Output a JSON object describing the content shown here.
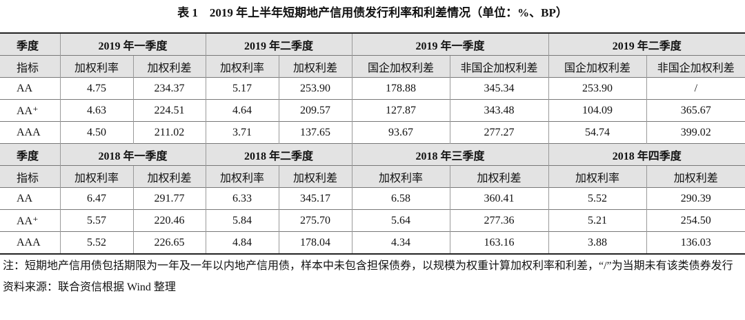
{
  "title": "表 1　2019 年上半年短期地产信用债发行利率和利差情况（单位：%、BP）",
  "table": {
    "sections": [
      {
        "season_label": "季度",
        "periods": [
          "2019 年一季度",
          "2019 年二季度",
          "2019 年一季度",
          "2019 年二季度"
        ],
        "index_label": "指标",
        "metrics": [
          "加权利率",
          "加权利差",
          "加权利率",
          "加权利差",
          "国企加权利差",
          "非国企加权利差",
          "国企加权利差",
          "非国企加权利差"
        ],
        "rows": [
          [
            "AA",
            "4.75",
            "234.37",
            "5.17",
            "253.90",
            "178.88",
            "345.34",
            "253.90",
            "/"
          ],
          [
            "AA⁺",
            "4.63",
            "224.51",
            "4.64",
            "209.57",
            "127.87",
            "343.48",
            "104.09",
            "365.67"
          ],
          [
            "AAA",
            "4.50",
            "211.02",
            "3.71",
            "137.65",
            "93.67",
            "277.27",
            "54.74",
            "399.02"
          ]
        ]
      },
      {
        "season_label": "季度",
        "periods": [
          "2018 年一季度",
          "2018 年二季度",
          "2018 年三季度",
          "2018 年四季度"
        ],
        "index_label": "指标",
        "metrics": [
          "加权利率",
          "加权利差",
          "加权利率",
          "加权利差",
          "加权利率",
          "加权利差",
          "加权利率",
          "加权利差"
        ],
        "rows": [
          [
            "AA",
            "6.47",
            "291.77",
            "6.33",
            "345.17",
            "6.58",
            "360.41",
            "5.52",
            "290.39"
          ],
          [
            "AA⁺",
            "5.57",
            "220.46",
            "5.84",
            "275.70",
            "5.64",
            "277.36",
            "5.21",
            "254.50"
          ],
          [
            "AAA",
            "5.52",
            "226.65",
            "4.84",
            "178.04",
            "4.34",
            "163.16",
            "3.88",
            "136.03"
          ]
        ]
      }
    ]
  },
  "notes": [
    "注：短期地产信用债包括期限为一年及一年以内地产信用债，样本中未包含担保债券，以规模为权重计算加权利率和利差，“/”为当期未有该类债券发行",
    "资料来源：联合资信根据 Wind 整理"
  ]
}
